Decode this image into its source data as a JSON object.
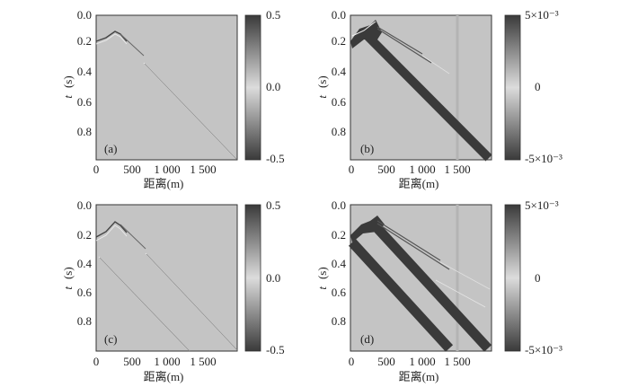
{
  "figure": {
    "panels": [
      {
        "label": "(a)",
        "ylabel_var": "t",
        "ylabel_unit": "(s)",
        "xlabel": "距离(m)",
        "y_ticks": [
          "0.0",
          "0.2",
          "0.4",
          "0.6",
          "0.8"
        ],
        "x_ticks": [
          "0",
          "500",
          "1 000",
          "1 500"
        ],
        "colorbar_ticks": [
          "0.5",
          "0.0",
          "-0.5"
        ]
      },
      {
        "label": "(b)",
        "ylabel_var": "t",
        "ylabel_unit": "(s)",
        "xlabel": "距离(m)",
        "y_ticks": [
          "0.0",
          "0.2",
          "0.4",
          "0.6",
          "0.8"
        ],
        "x_ticks": [
          "0",
          "500",
          "1 000",
          "1 500"
        ],
        "colorbar_ticks": [
          "5×10⁻³",
          "0",
          "-5×10⁻³"
        ]
      },
      {
        "label": "(c)",
        "ylabel_var": "t",
        "ylabel_unit": "(s)",
        "xlabel": "距离(m)",
        "y_ticks": [
          "0.0",
          "0.2",
          "0.4",
          "0.6",
          "0.8"
        ],
        "x_ticks": [
          "0",
          "500",
          "1 000",
          "1 500"
        ],
        "colorbar_ticks": [
          "0.5",
          "0.0",
          "-0.5"
        ]
      },
      {
        "label": "(d)",
        "ylabel_var": "t",
        "ylabel_unit": "(s)",
        "xlabel": "距离(m)",
        "y_ticks": [
          "0.0",
          "0.2",
          "0.4",
          "0.6",
          "0.8"
        ],
        "x_ticks": [
          "0",
          "500",
          "1 000",
          "1 500"
        ],
        "colorbar_ticks": [
          "5×10⁻³",
          "0",
          "-5×10⁻³"
        ]
      }
    ]
  },
  "colors": {
    "background": "#c4c4c4",
    "dark": "#3a3a3a",
    "frame": "#333333"
  }
}
